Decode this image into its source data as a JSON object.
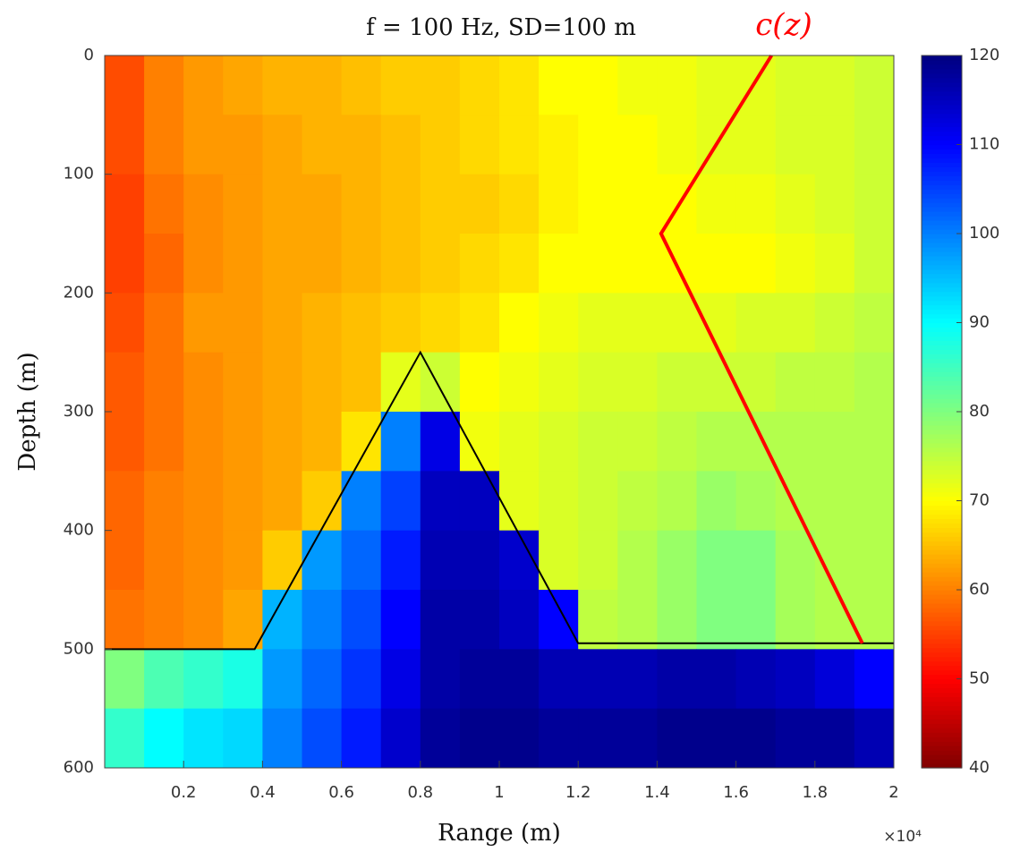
{
  "chart_data": {
    "type": "heatmap",
    "title": "f = 100 Hz, SD=100 m",
    "x_label": "Range (m)",
    "y_label": "Depth (m)",
    "x_exponent_label": "×10⁴",
    "annotation": "c(z)",
    "xlim": [
      0,
      20000
    ],
    "ylim": [
      0,
      600
    ],
    "y_inverted": true,
    "xticks": [
      {
        "value": 2000,
        "label": "0.2"
      },
      {
        "value": 4000,
        "label": "0.4"
      },
      {
        "value": 6000,
        "label": "0.6"
      },
      {
        "value": 8000,
        "label": "0.8"
      },
      {
        "value": 10000,
        "label": "1"
      },
      {
        "value": 12000,
        "label": "1.2"
      },
      {
        "value": 14000,
        "label": "1.4"
      },
      {
        "value": 16000,
        "label": "1.6"
      },
      {
        "value": 18000,
        "label": "1.8"
      },
      {
        "value": 20000,
        "label": "2"
      }
    ],
    "yticks": [
      0,
      100,
      200,
      300,
      400,
      500,
      600
    ],
    "colormap": "jet",
    "colormap_reversed": true,
    "clim": [
      40,
      120
    ],
    "cticks": [
      40,
      50,
      60,
      70,
      80,
      90,
      100,
      110,
      120
    ],
    "x": [
      500,
      1500,
      2500,
      3500,
      4500,
      5500,
      6500,
      7500,
      8500,
      9500,
      10500,
      11500,
      12500,
      13500,
      14500,
      15500,
      16500,
      17500,
      18500,
      19500
    ],
    "y": [
      25,
      75,
      125,
      175,
      225,
      275,
      325,
      375,
      425,
      475,
      525,
      575
    ],
    "z": [
      [
        56,
        60,
        62,
        63,
        64,
        64,
        65,
        66,
        66,
        67,
        68,
        70,
        70,
        71,
        71,
        72,
        72,
        73,
        73,
        74
      ],
      [
        56,
        60,
        62,
        62,
        63,
        64,
        64,
        65,
        66,
        67,
        68,
        69,
        70,
        70,
        71,
        72,
        72,
        73,
        73,
        74
      ],
      [
        55,
        59,
        61,
        62,
        63,
        63,
        64,
        65,
        66,
        66,
        67,
        69,
        70,
        70,
        70,
        71,
        71,
        72,
        73,
        74
      ],
      [
        55,
        58,
        61,
        62,
        63,
        63,
        64,
        65,
        66,
        67,
        68,
        70,
        70,
        70,
        70,
        70,
        70,
        71,
        72,
        74
      ],
      [
        56,
        59,
        62,
        62,
        63,
        64,
        65,
        66,
        67,
        68,
        70,
        71,
        72,
        72,
        72,
        72,
        73,
        73,
        74,
        75
      ],
      [
        57,
        59,
        61,
        62,
        63,
        64,
        65,
        72,
        74,
        70,
        71,
        72,
        73,
        73,
        74,
        74,
        74,
        75,
        75,
        76
      ],
      [
        57,
        59,
        61,
        62,
        63,
        64,
        68,
        100,
        112,
        71,
        72,
        73,
        74,
        74,
        75,
        76,
        76,
        76,
        76,
        76
      ],
      [
        58,
        60,
        61,
        62,
        63,
        66,
        100,
        105,
        115,
        115,
        72,
        73,
        74,
        75,
        76,
        78,
        77,
        76,
        76,
        76
      ],
      [
        58,
        60,
        61,
        62,
        66,
        98,
        102,
        108,
        116,
        116,
        114,
        73,
        74,
        76,
        78,
        80,
        80,
        77,
        76,
        76
      ],
      [
        59,
        60,
        61,
        63,
        96,
        100,
        104,
        110,
        117,
        117,
        115,
        110,
        75,
        76,
        78,
        80,
        80,
        77,
        76,
        76
      ],
      [
        80,
        84,
        86,
        88,
        98,
        102,
        106,
        112,
        117,
        118,
        118,
        116,
        116,
        116,
        117,
        117,
        116,
        115,
        113,
        110
      ],
      [
        86,
        90,
        92,
        93,
        100,
        104,
        108,
        114,
        118,
        119,
        119,
        118,
        118,
        118,
        119,
        119,
        119,
        118,
        118,
        116
      ]
    ],
    "lines": [
      {
        "color": "#000000",
        "x": [
          0,
          3800,
          8000,
          12000,
          20000
        ],
        "y": [
          500,
          500,
          250,
          495,
          495
        ]
      },
      {
        "color": "#ff0000",
        "x": [
          16900,
          14100,
          19200
        ],
        "y": [
          0,
          150,
          495
        ]
      }
    ]
  }
}
